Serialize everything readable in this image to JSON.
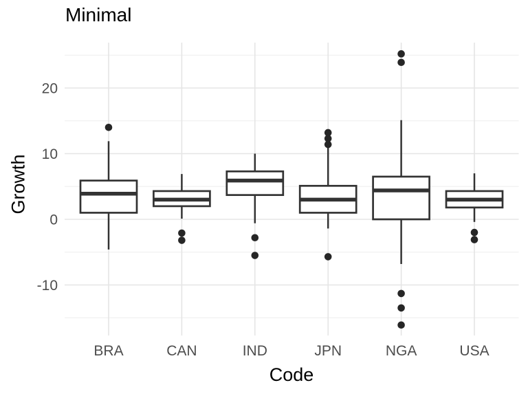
{
  "header": {
    "title": "Minimal"
  },
  "chart_data": {
    "type": "boxplot",
    "title": "Minimal",
    "xlabel": "Code",
    "ylabel": "Growth",
    "categories": [
      "BRA",
      "CAN",
      "IND",
      "JPN",
      "NGA",
      "USA"
    ],
    "ytick_values": [
      20,
      10,
      0,
      -10
    ],
    "ytick_labels": [
      "20",
      "10",
      "0",
      "-10"
    ],
    "minor_gridline_values": [
      25,
      15,
      5,
      -5,
      -15
    ],
    "ylim": [
      -17.7,
      26.9
    ],
    "grid": "on",
    "legend": "none",
    "series": [
      {
        "name": "BRA",
        "whisker_low": -4.6,
        "q1": 1.0,
        "median": 3.9,
        "q3": 5.9,
        "whisker_high": 11.9,
        "outliers": [
          14.0
        ]
      },
      {
        "name": "CAN",
        "whisker_low": 0.1,
        "q1": 2.0,
        "median": 3.0,
        "q3": 4.3,
        "whisker_high": 6.9,
        "outliers": [
          -2.1,
          -3.2
        ]
      },
      {
        "name": "IND",
        "whisker_low": -0.6,
        "q1": 3.7,
        "median": 5.9,
        "q3": 7.3,
        "whisker_high": 10.0,
        "outliers": [
          -2.8,
          -5.5
        ]
      },
      {
        "name": "JPN",
        "whisker_low": -1.4,
        "q1": 1.0,
        "median": 3.0,
        "q3": 5.1,
        "whisker_high": 10.9,
        "outliers": [
          13.2,
          12.3,
          11.4,
          -5.7
        ]
      },
      {
        "name": "NGA",
        "whisker_low": -6.8,
        "q1": 0.0,
        "median": 4.4,
        "q3": 6.5,
        "whisker_high": 15.1,
        "outliers": [
          25.2,
          23.9,
          -11.3,
          -13.5,
          -16.1
        ]
      },
      {
        "name": "USA",
        "whisker_low": -0.4,
        "q1": 1.8,
        "median": 3.0,
        "q3": 4.3,
        "whisker_high": 7.0,
        "outliers": [
          -2.0,
          -3.1
        ]
      }
    ],
    "colors": {
      "background": "#ffffff",
      "box_stroke": "#333333",
      "box_fill": "#ffffff",
      "outlier_fill": "#262626",
      "grid_major": "#e5e5e5",
      "grid_minor": "#ededed",
      "tick_text": "#4d4d4d",
      "title_text": "#000000"
    }
  }
}
